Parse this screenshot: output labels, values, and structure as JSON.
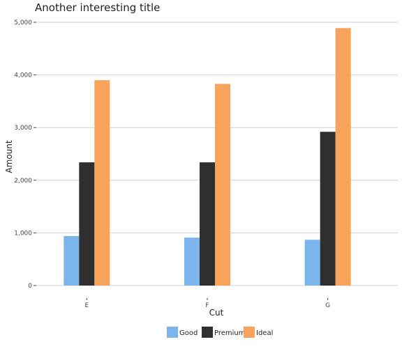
{
  "chart_data": {
    "type": "bar",
    "title": "Another interesting title",
    "xlabel": "Cut",
    "ylabel": "Amount",
    "categories": [
      "E",
      "F",
      "G"
    ],
    "series": [
      {
        "name": "Good",
        "values": [
          940,
          910,
          870
        ],
        "color": "#7cb5ec"
      },
      {
        "name": "Premium",
        "values": [
          2340,
          2340,
          2920
        ],
        "color": "#2f2f2f"
      },
      {
        "name": "Ideal",
        "values": [
          3900,
          3830,
          4890
        ],
        "color": "#f7a35c"
      }
    ],
    "ylim": [
      0,
      5000
    ],
    "yticks": [
      0,
      1000,
      2000,
      3000,
      4000,
      5000
    ],
    "ytick_labels": [
      "0",
      "1,000",
      "2,000",
      "3,000",
      "4,000",
      "5,000"
    ],
    "grid": true,
    "legend_position": "bottom"
  }
}
